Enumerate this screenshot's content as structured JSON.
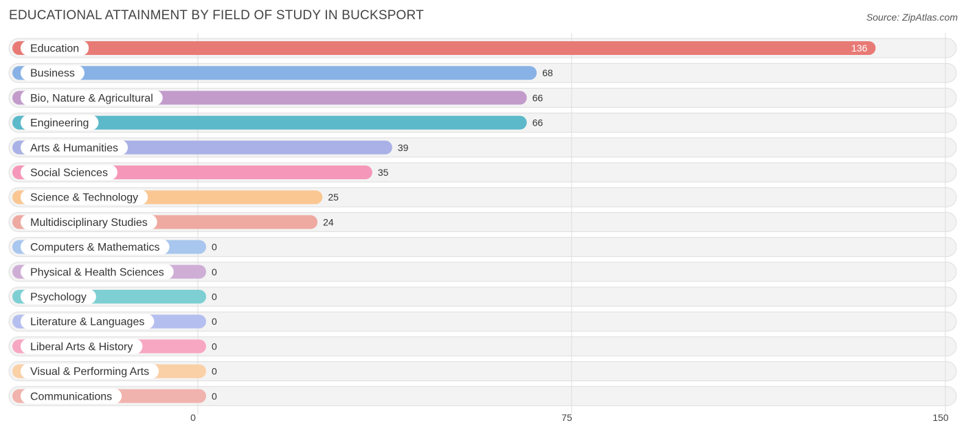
{
  "chart_data": {
    "type": "bar",
    "orientation": "horizontal",
    "title": "EDUCATIONAL ATTAINMENT BY FIELD OF STUDY IN BUCKSPORT",
    "source": "Source: ZipAtlas.com",
    "xlim": [
      0,
      150
    ],
    "ticks": [
      0,
      75,
      150
    ],
    "grid": true,
    "categories": [
      "Education",
      "Business",
      "Bio, Nature & Agricultural",
      "Engineering",
      "Arts & Humanities",
      "Social Sciences",
      "Science & Technology",
      "Multidisciplinary Studies",
      "Computers & Mathematics",
      "Physical & Health Sciences",
      "Psychology",
      "Literature & Languages",
      "Liberal Arts & History",
      "Visual & Performing Arts",
      "Communications"
    ],
    "values": [
      136,
      68,
      66,
      66,
      39,
      35,
      25,
      24,
      0,
      0,
      0,
      0,
      0,
      0,
      0
    ],
    "colors": [
      "#e87a76",
      "#88b2e5",
      "#c29bcb",
      "#5bb9c9",
      "#a9b1e6",
      "#f597b8",
      "#fac793",
      "#eea9a1",
      "#a8c6ee",
      "#cfaed6",
      "#7ecfd3",
      "#b5bfef",
      "#f8a7c3",
      "#fad0a6",
      "#f1b3ad"
    ]
  }
}
